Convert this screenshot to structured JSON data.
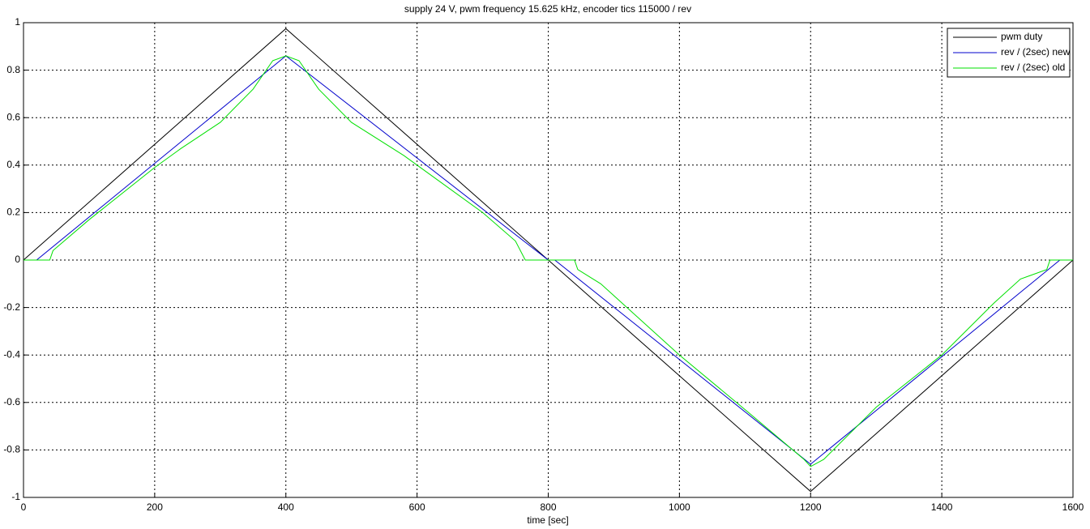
{
  "chart_data": {
    "type": "line",
    "title": "supply 24 V, pwm frequency 15.625 kHz, encoder tics 115000 / rev",
    "x_label": "time [sec]",
    "xlim": [
      0,
      1600
    ],
    "ylim": [
      -1,
      1
    ],
    "xticks": [
      0,
      200,
      400,
      600,
      800,
      1000,
      1200,
      1400,
      1600
    ],
    "yticks": [
      -1,
      -0.8,
      -0.6,
      -0.4,
      -0.2,
      0,
      0.2,
      0.4,
      0.6,
      0.8,
      1
    ],
    "grid": true,
    "legend": "top-right",
    "series": [
      {
        "name": "pwm duty",
        "color": "#000000",
        "x": [
          0,
          400,
          800,
          1200,
          1600
        ],
        "values": [
          0,
          0.975,
          0,
          -0.975,
          0
        ]
      },
      {
        "name": "rev / (2sec) new",
        "color": "#0000cc",
        "x": [
          0,
          20,
          400,
          800,
          810,
          1200,
          1580,
          1600
        ],
        "values": [
          0,
          0,
          0.86,
          0,
          0,
          -0.86,
          0,
          0
        ]
      },
      {
        "name": "rev / (2sec) old",
        "color": "#00e000",
        "x": [
          0,
          40,
          45,
          100,
          200,
          235,
          240,
          300,
          350,
          380,
          400,
          420,
          450,
          500,
          580,
          600,
          700,
          750,
          765,
          800,
          840,
          845,
          880,
          920,
          1000,
          1100,
          1190,
          1200,
          1220,
          1300,
          1400,
          1480,
          1520,
          1560,
          1565,
          1600
        ],
        "values": [
          0,
          0,
          0.04,
          0.17,
          0.39,
          0.46,
          0.47,
          0.58,
          0.72,
          0.84,
          0.86,
          0.84,
          0.72,
          0.58,
          0.44,
          0.4,
          0.2,
          0.08,
          0,
          0,
          0,
          -0.04,
          -0.1,
          -0.2,
          -0.4,
          -0.63,
          -0.84,
          -0.87,
          -0.84,
          -0.62,
          -0.4,
          -0.18,
          -0.08,
          -0.04,
          0,
          0
        ]
      }
    ]
  }
}
